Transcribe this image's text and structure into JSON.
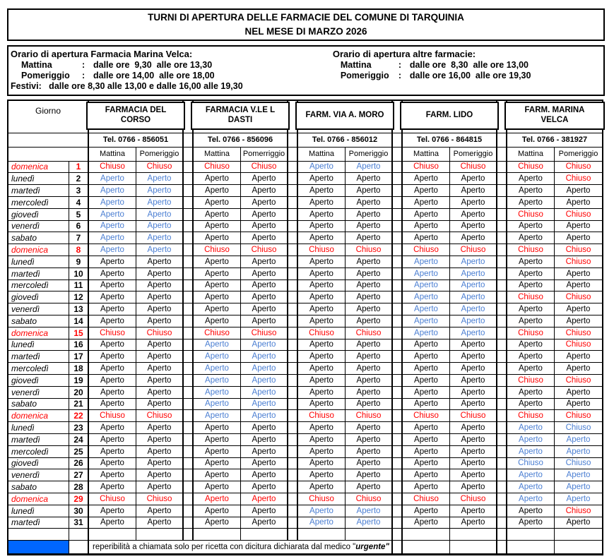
{
  "title": {
    "line1": "TURNI DI APERTURA DELLE FARMACIE DEL COMUNE DI TARQUINIA",
    "line2": "NEL MESE DI MARZO 2026"
  },
  "hours_left": {
    "heading": "Orario di apertura Farmacia Marina Velca:",
    "mattina_label": "Mattina",
    "mattina_colon": ":",
    "mattina_value": "dalle ore  9,30  alle ore 13,30",
    "pomeriggio_label": "Pomeriggio",
    "pomeriggio_colon": ":",
    "pomeriggio_value": "dalle ore 14,00  alle ore 18,00",
    "festivi": "Festivi:   dalle ore 8,30 alle 13,00 e dalle 16,00 alle 19,30"
  },
  "hours_right": {
    "heading": "Orario di apertura altre farmacie:",
    "mattina_label": "Mattina",
    "mattina_colon": ":",
    "mattina_value": "dalle ore  8,30  alle ore 13,00",
    "pomeriggio_label": "Pomeriggio",
    "pomeriggio_colon": ":",
    "pomeriggio_value": "dalle ore 16,00  alle ore 19,30"
  },
  "table": {
    "giorno_header": "Giorno",
    "pharmacies": [
      {
        "name_line1": "FARMACIA DEL",
        "name_line2": "CORSO",
        "tel": "Tel. 0766 - 856051",
        "col1": "Mattina",
        "col2": "Pomeriggio"
      },
      {
        "name_line1": "FARMACIA V.LE L",
        "name_line2": "DASTI",
        "tel": "Tel. 0766 - 856096",
        "col1": "Mattina",
        "col2": "Pomerriggio"
      },
      {
        "name_line1": "FARM. VIA A. MORO",
        "name_line2": "",
        "tel": "Tel. 0766 - 856012",
        "col1": "Mattina",
        "col2": "Pomeriggio"
      },
      {
        "name_line1": "FARM. LIDO",
        "name_line2": "",
        "tel": "Tel. 0766 - 864815",
        "col1": "Mattina",
        "col2": "Pomeriggio"
      },
      {
        "name_line1": "FARM. MARINA",
        "name_line2": "VELCA",
        "tel": "Tel. 0766 - 381927",
        "col1": "Mattina",
        "col2": "Pomeriggio"
      }
    ],
    "legend": {
      "A": "Aperto",
      "C": "Chiuso"
    },
    "colors": {
      "r": "#ff0000",
      "b": "#4a7ed2",
      "k": "#000000"
    },
    "days": [
      {
        "d": "domenica",
        "n": "1",
        "sun": true,
        "c": [
          "Cr",
          "Cr",
          "Cr",
          "Cr",
          "Ab",
          "Ab",
          "Cr",
          "Cr",
          "Cr",
          "Cr"
        ]
      },
      {
        "d": "lunedì",
        "n": "2",
        "sun": false,
        "c": [
          "Ab",
          "Ab",
          "Ak",
          "Ak",
          "Ak",
          "Ak",
          "Ak",
          "Ak",
          "Ak",
          "Cr"
        ]
      },
      {
        "d": "martedì",
        "n": "3",
        "sun": false,
        "c": [
          "Ab",
          "Ab",
          "Ak",
          "Ak",
          "Ak",
          "Ak",
          "Ak",
          "Ak",
          "Ak",
          "Ak"
        ]
      },
      {
        "d": "mercoledì",
        "n": "4",
        "sun": false,
        "c": [
          "Ab",
          "Ab",
          "Ak",
          "Ak",
          "Ak",
          "Ak",
          "Ak",
          "Ak",
          "Ak",
          "Ak"
        ]
      },
      {
        "d": "giovedì",
        "n": "5",
        "sun": false,
        "c": [
          "Ab",
          "Ab",
          "Ak",
          "Ak",
          "Ak",
          "Ak",
          "Ak",
          "Ak",
          "Cr",
          "Cr"
        ]
      },
      {
        "d": "venerdì",
        "n": "6",
        "sun": false,
        "c": [
          "Ab",
          "Ab",
          "Ak",
          "Ak",
          "Ak",
          "Ak",
          "Ak",
          "Ak",
          "Ak",
          "Ak"
        ]
      },
      {
        "d": "sabato",
        "n": "7",
        "sun": false,
        "c": [
          "Ab",
          "Ab",
          "Ak",
          "Ak",
          "Ak",
          "Ak",
          "Ak",
          "Ak",
          "Ak",
          "Ak"
        ]
      },
      {
        "d": "domenica",
        "n": "8",
        "sun": true,
        "c": [
          "Ab",
          "Ab",
          "Cr",
          "Cr",
          "Cr",
          "Cr",
          "Cr",
          "Cr",
          "Cr",
          "Cr"
        ]
      },
      {
        "d": "lunedì",
        "n": "9",
        "sun": false,
        "c": [
          "Ak",
          "Ak",
          "Ak",
          "Ak",
          "Ak",
          "Ak",
          "Ab",
          "Ab",
          "Ak",
          "Cr"
        ]
      },
      {
        "d": "martedì",
        "n": "10",
        "sun": false,
        "c": [
          "Ak",
          "Ak",
          "Ak",
          "Ak",
          "Ak",
          "Ak",
          "Ab",
          "Ab",
          "Ak",
          "Ak"
        ]
      },
      {
        "d": "mercoledì",
        "n": "11",
        "sun": false,
        "c": [
          "Ak",
          "Ak",
          "Ak",
          "Ak",
          "Ak",
          "Ak",
          "Ab",
          "Ab",
          "Ak",
          "Ak"
        ]
      },
      {
        "d": "giovedì",
        "n": "12",
        "sun": false,
        "c": [
          "Ak",
          "Ak",
          "Ak",
          "Ak",
          "Ak",
          "Ak",
          "Ab",
          "Ab",
          "Cr",
          "Cr"
        ]
      },
      {
        "d": "venerdì",
        "n": "13",
        "sun": false,
        "c": [
          "Ak",
          "Ak",
          "Ak",
          "Ak",
          "Ak",
          "Ak",
          "Ab",
          "Ab",
          "Ak",
          "Ak"
        ]
      },
      {
        "d": "sabato",
        "n": "14",
        "sun": false,
        "c": [
          "Ak",
          "Ak",
          "Ak",
          "Ak",
          "Ak",
          "Ak",
          "Ab",
          "Ab",
          "Ak",
          "Ak"
        ]
      },
      {
        "d": "domenica",
        "n": "15",
        "sun": true,
        "c": [
          "Cr",
          "Cr",
          "Cr",
          "Cr",
          "Cr",
          "Cr",
          "Ab",
          "Ab",
          "Cr",
          "Cr"
        ]
      },
      {
        "d": "lunedì",
        "n": "16",
        "sun": false,
        "c": [
          "Ak",
          "Ak",
          "Ab",
          "Ab",
          "Ak",
          "Ak",
          "Ak",
          "Ak",
          "Ak",
          "Cr"
        ]
      },
      {
        "d": "martedì",
        "n": "17",
        "sun": false,
        "c": [
          "Ak",
          "Ak",
          "Ab",
          "Ab",
          "Ak",
          "Ak",
          "Ak",
          "Ak",
          "Ak",
          "Ak"
        ]
      },
      {
        "d": "mercoledì",
        "n": "18",
        "sun": false,
        "c": [
          "Ak",
          "Ak",
          "Ab",
          "Ab",
          "Ak",
          "Ak",
          "Ak",
          "Ak",
          "Ak",
          "Ak"
        ]
      },
      {
        "d": "giovedì",
        "n": "19",
        "sun": false,
        "c": [
          "Ak",
          "Ak",
          "Ab",
          "Ab",
          "Ak",
          "Ak",
          "Ak",
          "Ak",
          "Cr",
          "Cr"
        ]
      },
      {
        "d": "venerdì",
        "n": "20",
        "sun": false,
        "c": [
          "Ak",
          "Ak",
          "Ab",
          "Ab",
          "Ak",
          "Ak",
          "Ak",
          "Ak",
          "Ak",
          "Ak"
        ]
      },
      {
        "d": "sabato",
        "n": "21",
        "sun": false,
        "c": [
          "Ak",
          "Ak",
          "Ab",
          "Ab",
          "Ak",
          "Ak",
          "Ak",
          "Ak",
          "Ak",
          "Ak"
        ]
      },
      {
        "d": "domenica",
        "n": "22",
        "sun": true,
        "c": [
          "Cr",
          "Cr",
          "Ab",
          "Ab",
          "Cr",
          "Cr",
          "Cr",
          "Cr",
          "Cr",
          "Cr"
        ]
      },
      {
        "d": "lunedì",
        "n": "23",
        "sun": false,
        "c": [
          "Ak",
          "Ak",
          "Ak",
          "Ak",
          "Ak",
          "Ak",
          "Ak",
          "Ak",
          "Ab",
          "Cb"
        ]
      },
      {
        "d": "martedì",
        "n": "24",
        "sun": false,
        "c": [
          "Ak",
          "Ak",
          "Ak",
          "Ak",
          "Ak",
          "Ak",
          "Ak",
          "Ak",
          "Ab",
          "Ab"
        ]
      },
      {
        "d": "mercoledì",
        "n": "25",
        "sun": false,
        "c": [
          "Ak",
          "Ak",
          "Ak",
          "Ak",
          "Ak",
          "Ak",
          "Ak",
          "Ak",
          "Ab",
          "Ab"
        ]
      },
      {
        "d": "giovedì",
        "n": "26",
        "sun": false,
        "c": [
          "Ak",
          "Ak",
          "Ak",
          "Ak",
          "Ak",
          "Ak",
          "Ak",
          "Ak",
          "Cb",
          "Cb"
        ]
      },
      {
        "d": "venerdì",
        "n": "27",
        "sun": false,
        "c": [
          "Ak",
          "Ak",
          "Ak",
          "Ak",
          "Ak",
          "Ak",
          "Ak",
          "Ak",
          "Ab",
          "Ab"
        ]
      },
      {
        "d": "sabato",
        "n": "28",
        "sun": false,
        "c": [
          "Ak",
          "Ak",
          "Ak",
          "Ak",
          "Ak",
          "Ak",
          "Ak",
          "Ak",
          "Ab",
          "Ab"
        ]
      },
      {
        "d": "domenica",
        "n": "29",
        "sun": true,
        "c": [
          "Cr",
          "Cr",
          "Ar",
          "Ar",
          "Cr",
          "Cr",
          "Cr",
          "Cr",
          "Ab",
          "Ab"
        ]
      },
      {
        "d": "lunedì",
        "n": "30",
        "sun": false,
        "c": [
          "Ak",
          "Ak",
          "Ak",
          "Ak",
          "Ab",
          "Ab",
          "Ak",
          "Ak",
          "Ak",
          "Cr"
        ]
      },
      {
        "d": "martedì",
        "n": "31",
        "sun": false,
        "c": [
          "Ak",
          "Ak",
          "Ak",
          "Ak",
          "Ab",
          "Ab",
          "Ak",
          "Ak",
          "Ak",
          "Ak"
        ]
      }
    ]
  },
  "footer": {
    "swatch_color": "#0066ff",
    "note_prefix": "reperibilità a chiamata solo per ricetta con dicitura dichiarata dal medico \"",
    "note_word": "urgente",
    "note_suffix": "\""
  }
}
